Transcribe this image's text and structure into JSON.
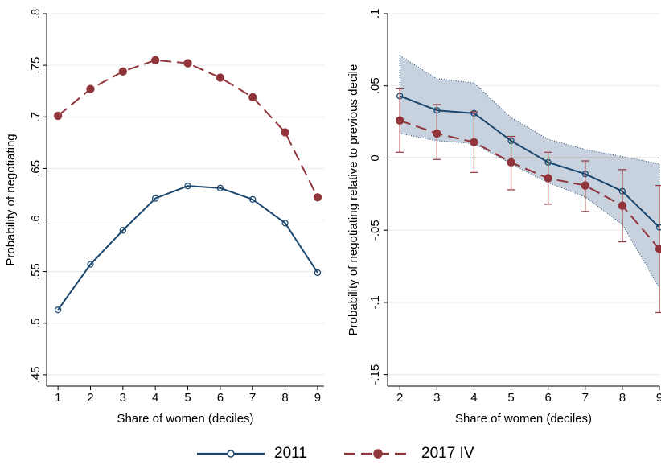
{
  "chart_data": [
    {
      "type": "line",
      "xlabel": "Share of women (deciles)",
      "ylabel": "Probability of negotiating",
      "x": [
        1,
        2,
        3,
        4,
        5,
        6,
        7,
        8,
        9
      ],
      "xlim": [
        0.65,
        9.2
      ],
      "xticks": [
        1,
        2,
        3,
        4,
        5,
        6,
        7,
        8,
        9
      ],
      "ylim": [
        0.439,
        0.8
      ],
      "yticks": [
        {
          "value": 0.45,
          "label": ".45"
        },
        {
          "value": 0.5,
          "label": ".5"
        },
        {
          "value": 0.55,
          "label": ".55"
        },
        {
          "value": 0.6,
          "label": ".6"
        },
        {
          "value": 0.65,
          "label": ".65"
        },
        {
          "value": 0.7,
          "label": ".7"
        },
        {
          "value": 0.75,
          "label": ".75"
        },
        {
          "value": 0.8,
          "label": ".8"
        }
      ],
      "grid": true,
      "legend": "bottom",
      "series": [
        {
          "name": "2011",
          "color": "#1a476f",
          "line_style": "solid",
          "marker": "circle-hollow",
          "values": [
            0.513,
            0.557,
            0.59,
            0.621,
            0.633,
            0.631,
            0.62,
            0.597,
            0.549
          ]
        },
        {
          "name": "2017 IV",
          "color": "#90353b",
          "line_style": "dashed",
          "marker": "circle",
          "values": [
            0.701,
            0.727,
            0.744,
            0.755,
            0.752,
            0.738,
            0.719,
            0.685,
            0.622
          ]
        }
      ]
    },
    {
      "type": "line",
      "xlabel": "Share of women (deciles)",
      "ylabel": "Probability of negotiating relative to previous decile",
      "x": [
        2,
        3,
        4,
        5,
        6,
        7,
        8,
        9
      ],
      "xlim": [
        1.67,
        9
      ],
      "xticks": [
        2,
        3,
        4,
        5,
        6,
        7,
        8,
        9
      ],
      "ylim": [
        -0.158,
        0.1
      ],
      "yticks": [
        {
          "value": -0.15,
          "label": "-.15"
        },
        {
          "value": -0.1,
          "label": "-.1"
        },
        {
          "value": -0.05,
          "label": "-.05"
        },
        0,
        {
          "value": 0.05,
          "label": ".05"
        },
        {
          "value": 0.1,
          "label": ".1"
        }
      ],
      "grid": true,
      "reference_line": 0,
      "series": [
        {
          "name": "2011",
          "color": "#1a476f",
          "line_style": "solid",
          "marker": "circle-hollow",
          "interval": "band",
          "band_color": "#c8d2de",
          "values": [
            0.043,
            0.033,
            0.031,
            0.012,
            -0.003,
            -0.011,
            -0.023,
            -0.048
          ],
          "upper": [
            0.071,
            0.055,
            0.052,
            0.028,
            0.013,
            0.006,
            0.001,
            -0.004
          ],
          "lower": [
            0.017,
            0.012,
            0.01,
            -0.004,
            -0.017,
            -0.027,
            -0.046,
            -0.09
          ]
        },
        {
          "name": "2017 IV",
          "color": "#90353b",
          "line_style": "dashed",
          "marker": "circle",
          "interval": "errorbar",
          "values": [
            0.026,
            0.017,
            0.011,
            -0.003,
            -0.014,
            -0.019,
            -0.033,
            -0.063
          ],
          "upper": [
            0.048,
            0.037,
            0.032,
            0.015,
            0.004,
            -0.002,
            -0.008,
            -0.019
          ],
          "lower": [
            0.004,
            -0.001,
            -0.01,
            -0.022,
            -0.032,
            -0.037,
            -0.058,
            -0.107
          ]
        }
      ]
    }
  ]
}
